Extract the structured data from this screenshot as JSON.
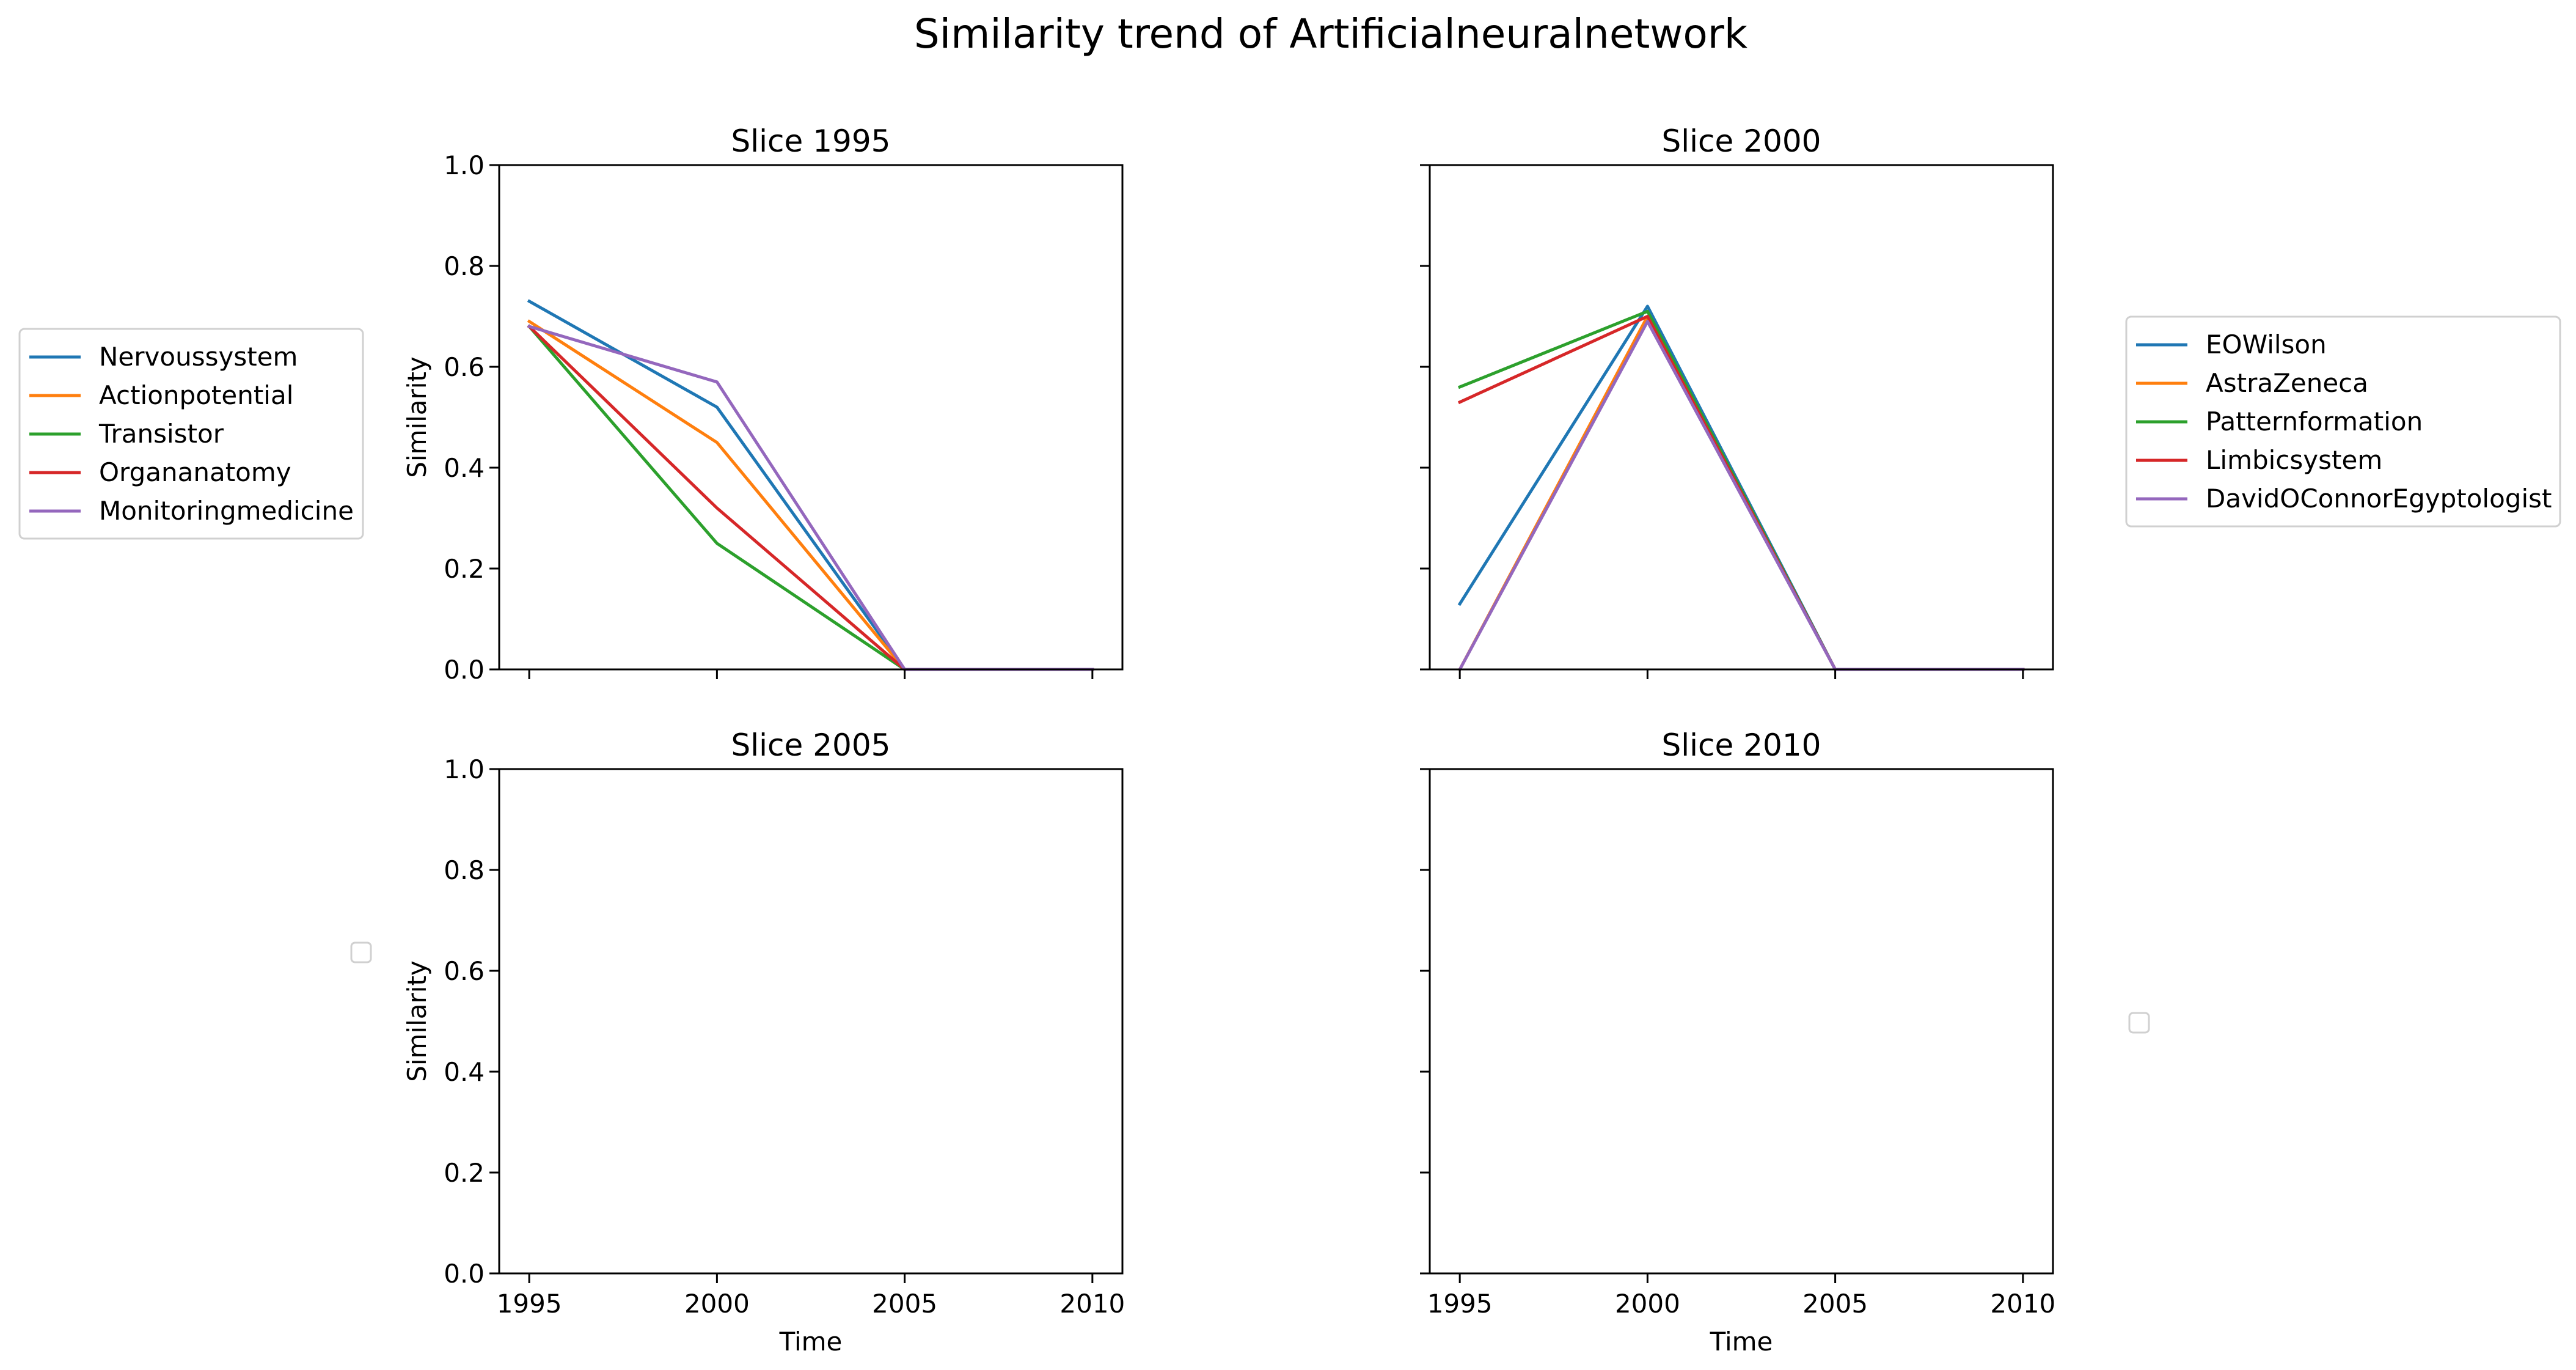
{
  "figure_title": "Similarity trend of Artificialneuralnetwork",
  "chart_data": [
    {
      "type": "line",
      "title": "Slice 1995",
      "xlabel": "",
      "ylabel": "Similarity",
      "x": [
        1995,
        2000,
        2005,
        2010
      ],
      "xlim": [
        1994.2,
        2010.8
      ],
      "ylim": [
        0,
        1
      ],
      "xticks": [
        "1995",
        "2000",
        "2005",
        "2010"
      ],
      "yticks": [
        "0.0",
        "0.2",
        "0.4",
        "0.6",
        "0.8",
        "1.0"
      ],
      "show_xtick_labels": false,
      "show_ytick_labels": true,
      "grid": false,
      "legend_position": "outside-left",
      "series": [
        {
          "name": "Nervoussystem",
          "color": "#1f77b4",
          "values": [
            0.73,
            0.52,
            0.0,
            0.0
          ]
        },
        {
          "name": "Actionpotential",
          "color": "#ff7f0e",
          "values": [
            0.69,
            0.45,
            0.0,
            0.0
          ]
        },
        {
          "name": "Transistor",
          "color": "#2ca02c",
          "values": [
            0.68,
            0.25,
            0.0,
            0.0
          ]
        },
        {
          "name": "Organanatomy",
          "color": "#d62728",
          "values": [
            0.68,
            0.32,
            0.0,
            0.0
          ]
        },
        {
          "name": "Monitoringmedicine",
          "color": "#9467bd",
          "values": [
            0.68,
            0.57,
            0.0,
            0.0
          ]
        }
      ]
    },
    {
      "type": "line",
      "title": "Slice 2000",
      "xlabel": "",
      "ylabel": "",
      "x": [
        1995,
        2000,
        2005,
        2010
      ],
      "xlim": [
        1994.2,
        2010.8
      ],
      "ylim": [
        0,
        1
      ],
      "xticks": [
        "1995",
        "2000",
        "2005",
        "2010"
      ],
      "yticks": [
        "0.0",
        "0.2",
        "0.4",
        "0.6",
        "0.8",
        "1.0"
      ],
      "show_xtick_labels": false,
      "show_ytick_labels": false,
      "grid": false,
      "legend_position": "outside-right",
      "series": [
        {
          "name": "EOWilson",
          "color": "#1f77b4",
          "values": [
            0.13,
            0.72,
            0.0,
            0.0
          ]
        },
        {
          "name": "AstraZeneca",
          "color": "#ff7f0e",
          "values": [
            0.0,
            0.7,
            0.0,
            0.0
          ]
        },
        {
          "name": "Patternformation",
          "color": "#2ca02c",
          "values": [
            0.56,
            0.71,
            0.0,
            0.0
          ]
        },
        {
          "name": "Limbicsystem",
          "color": "#d62728",
          "values": [
            0.53,
            0.7,
            0.0,
            0.0
          ]
        },
        {
          "name": "DavidOConnorEgyptologist",
          "color": "#9467bd",
          "values": [
            0.0,
            0.69,
            0.0,
            0.0
          ]
        }
      ]
    },
    {
      "type": "line",
      "title": "Slice 2005",
      "xlabel": "Time",
      "ylabel": "Similarity",
      "x": [
        1995,
        2000,
        2005,
        2010
      ],
      "xlim": [
        1994.2,
        2010.8
      ],
      "ylim": [
        0,
        1
      ],
      "xticks": [
        "1995",
        "2000",
        "2005",
        "2010"
      ],
      "yticks": [
        "0.0",
        "0.2",
        "0.4",
        "0.6",
        "0.8",
        "1.0"
      ],
      "show_xtick_labels": true,
      "show_ytick_labels": true,
      "grid": false,
      "legend_position": "outside-left",
      "series": []
    },
    {
      "type": "line",
      "title": "Slice 2010",
      "xlabel": "Time",
      "ylabel": "",
      "x": [
        1995,
        2000,
        2005,
        2010
      ],
      "xlim": [
        1994.2,
        2010.8
      ],
      "ylim": [
        0,
        1
      ],
      "xticks": [
        "1995",
        "2000",
        "2005",
        "2010"
      ],
      "yticks": [
        "0.0",
        "0.2",
        "0.4",
        "0.6",
        "0.8",
        "1.0"
      ],
      "show_xtick_labels": true,
      "show_ytick_labels": false,
      "grid": false,
      "legend_position": "outside-right",
      "series": []
    }
  ]
}
